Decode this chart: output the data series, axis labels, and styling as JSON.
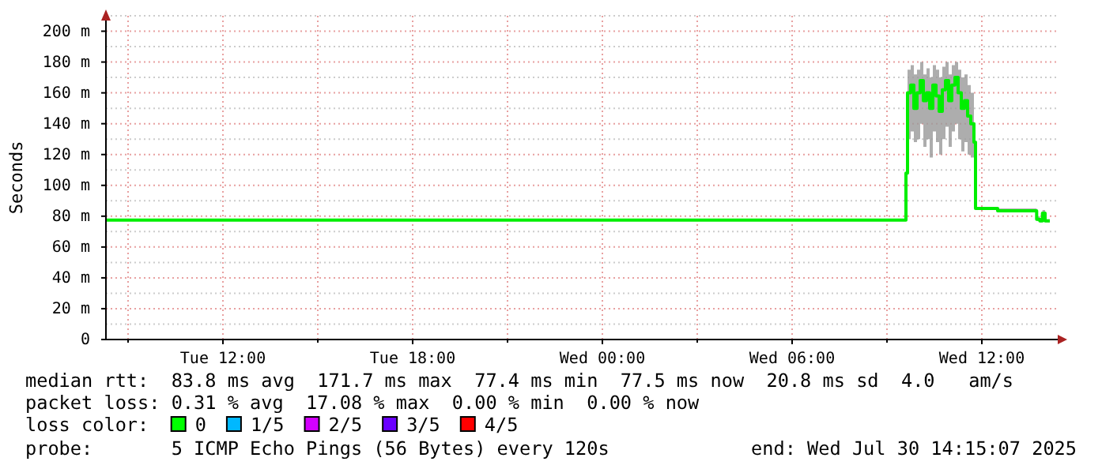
{
  "chart_data": {
    "type": "line",
    "ylabel": "Seconds",
    "xlim": [
      "2025-07-29T08:18",
      "2025-07-30T14:24"
    ],
    "ylim": [
      0,
      210
    ],
    "xticks": [
      {
        "value": "2025-07-29T09:00",
        "label": null
      },
      {
        "value": "2025-07-29T12:00",
        "label": "Tue 12:00"
      },
      {
        "value": "2025-07-29T15:00",
        "label": null
      },
      {
        "value": "2025-07-29T18:00",
        "label": "Tue 18:00"
      },
      {
        "value": "2025-07-29T21:00",
        "label": null
      },
      {
        "value": "2025-07-30T00:00",
        "label": "Wed 00:00"
      },
      {
        "value": "2025-07-30T03:00",
        "label": null
      },
      {
        "value": "2025-07-30T06:00",
        "label": "Wed 06:00"
      },
      {
        "value": "2025-07-30T09:00",
        "label": null
      },
      {
        "value": "2025-07-30T12:00",
        "label": "Wed 12:00"
      }
    ],
    "yticks": [
      0,
      {
        "value": 10,
        "label": null
      },
      {
        "value": 20,
        "label": "20 m"
      },
      {
        "value": 30,
        "label": null
      },
      {
        "value": 40,
        "label": "40 m"
      },
      {
        "value": 50,
        "label": null
      },
      {
        "value": 60,
        "label": "60 m"
      },
      {
        "value": 70,
        "label": null
      },
      {
        "value": 80,
        "label": "80 m"
      },
      {
        "value": 90,
        "label": null
      },
      {
        "value": 100,
        "label": "100 m"
      },
      {
        "value": 110,
        "label": null
      },
      {
        "value": 120,
        "label": "120 m"
      },
      {
        "value": 130,
        "label": null
      },
      {
        "value": 140,
        "label": "140 m"
      },
      {
        "value": 150,
        "label": null
      },
      {
        "value": 160,
        "label": "160 m"
      },
      {
        "value": 170,
        "label": null
      },
      {
        "value": 180,
        "label": "180 m"
      },
      {
        "value": 190,
        "label": null
      },
      {
        "value": 200,
        "label": "200 m"
      },
      {
        "value": 210,
        "label": null
      }
    ],
    "grid": true,
    "series": [
      {
        "color": "#00ee00",
        "x": [
          "2025-07-29T08:18",
          "2025-07-29T13:00",
          "2025-07-29T17:30",
          "2025-07-29T23:00",
          "2025-07-30T05:00",
          "2025-07-30T09:33",
          "2025-07-30T09:36",
          "2025-07-30T09:39",
          "2025-07-30T09:45",
          "2025-07-30T09:51",
          "2025-07-30T09:57",
          "2025-07-30T10:03",
          "2025-07-30T10:09",
          "2025-07-30T10:15",
          "2025-07-30T10:21",
          "2025-07-30T10:27",
          "2025-07-30T10:33",
          "2025-07-30T10:39",
          "2025-07-30T10:45",
          "2025-07-30T10:51",
          "2025-07-30T10:57",
          "2025-07-30T11:03",
          "2025-07-30T11:09",
          "2025-07-30T11:15",
          "2025-07-30T11:21",
          "2025-07-30T11:27",
          "2025-07-30T11:33",
          "2025-07-30T11:39",
          "2025-07-30T11:45",
          "2025-07-30T11:48",
          "2025-07-30T12:30",
          "2025-07-30T13:40",
          "2025-07-30T13:44",
          "2025-07-30T13:50",
          "2025-07-30T13:55",
          "2025-07-30T14:00",
          "2025-07-30T14:09"
        ],
        "values": [
          77.5,
          77.5,
          77.5,
          77.5,
          77.5,
          77.5,
          108,
          160,
          165,
          150,
          160,
          168,
          155,
          160,
          150,
          165,
          158,
          148,
          162,
          168,
          155,
          165,
          170,
          160,
          150,
          155,
          145,
          140,
          128,
          85,
          83.5,
          83.5,
          78,
          77,
          82,
          77,
          77
        ],
        "lower": [
          77,
          77,
          77,
          77,
          77,
          77,
          105,
          130,
          135,
          128,
          130,
          140,
          125,
          130,
          118,
          135,
          128,
          120,
          130,
          138,
          125,
          135,
          140,
          130,
          122,
          128,
          120,
          118,
          115,
          84,
          83,
          83,
          77,
          76,
          80,
          76,
          76
        ],
        "upper": [
          78,
          78,
          78,
          78,
          78,
          78,
          112,
          175,
          178,
          172,
          175,
          180,
          172,
          176,
          170,
          178,
          175,
          170,
          177,
          180,
          172,
          178,
          180,
          175,
          170,
          172,
          165,
          160,
          140,
          86,
          85,
          85,
          80,
          78,
          84,
          78,
          78
        ]
      }
    ],
    "annotations": [
      "median rtt:  83.8 ms avg  171.7 ms max  77.4 ms min  77.5 ms now  20.8 ms sd  4.0   am/s",
      "packet loss: 0.31 % avg  17.08 % max  0.00 % min  0.00 % now",
      "loss color:",
      "0",
      "1/5",
      "2/5",
      "3/5",
      "4/5",
      "probe:       5 ICMP Echo Pings (56 Bytes) every 120s",
      "end: Wed Jul 30 14:15:07 2025"
    ]
  }
}
